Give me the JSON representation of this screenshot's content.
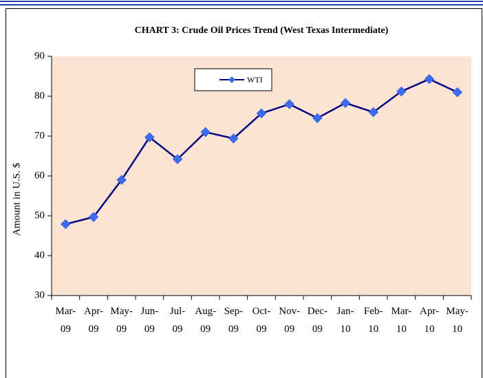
{
  "chart_data": {
    "type": "line",
    "title": "CHART 3: Crude  Oil Prices Trend (West Texas Intermediate)",
    "y_label": "Amount in U.S. $",
    "categories": [
      "Mar-09",
      "Apr-09",
      "May-09",
      "Jun-09",
      "Jul-09",
      "Aug-09",
      "Sep-09",
      "Oct-09",
      "Nov-09",
      "Dec-09",
      "Jan-10",
      "Feb-10",
      "Mar-10",
      "Apr-10",
      "May-10"
    ],
    "series": [
      {
        "name": "WTI",
        "color": "#000080",
        "marker_color": "#3d6cf0",
        "values": [
          47.9,
          49.7,
          59,
          69.7,
          64.2,
          71,
          69.4,
          75.7,
          78,
          74.5,
          78.3,
          76,
          81.2,
          84.3,
          81
        ]
      }
    ],
    "ylim": [
      30,
      90
    ],
    "yticks": [
      30,
      40,
      50,
      60,
      70,
      80,
      90
    ],
    "legend": "top-center"
  }
}
